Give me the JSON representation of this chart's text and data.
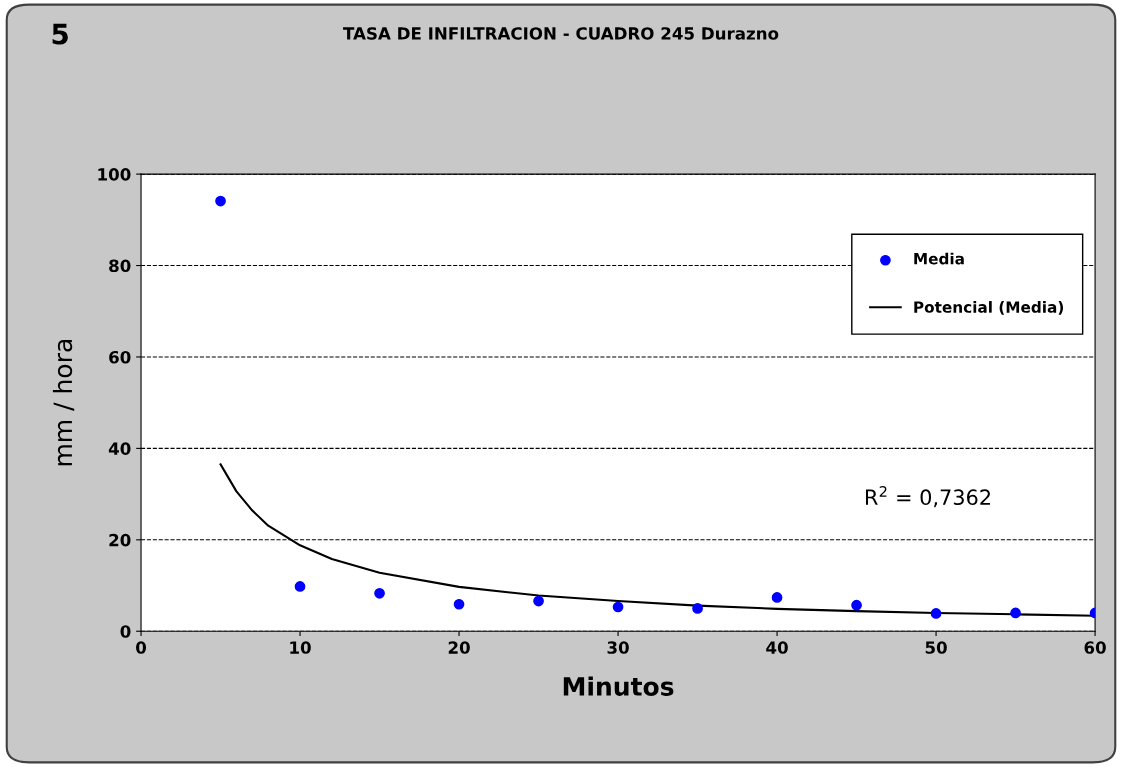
{
  "chart_data": {
    "type": "scatter",
    "title": "TASA DE INFILTRACION - CUADRO 245 Durazno",
    "xlabel": "Minutos",
    "ylabel": "mm / hora",
    "annotations": [
      "5",
      "R$^{2}$ = 0,7362"
    ],
    "series": [
      {
        "name": "Media",
        "color": "#0000ff",
        "marker": "circle",
        "x": [
          5,
          10,
          15,
          20,
          25,
          30,
          35,
          40,
          45,
          50,
          55,
          60
        ],
        "values": [
          94.1,
          9.8,
          8.3,
          5.9,
          6.6,
          5.3,
          5.0,
          7.4,
          5.7,
          3.9,
          4.0,
          4.0
        ]
      },
      {
        "name": "Potencial (Media)",
        "type": "line",
        "color": "#000000",
        "line_style": "solid",
        "x": [
          5,
          6,
          7,
          8,
          10,
          12,
          15,
          20,
          25,
          30,
          35,
          40,
          45,
          50,
          55,
          60
        ],
        "values": [
          36.5,
          30.6,
          26.4,
          23.1,
          18.8,
          15.8,
          12.8,
          9.7,
          7.8,
          6.6,
          5.6,
          4.9,
          4.4,
          4.0,
          3.7,
          3.4
        ]
      }
    ],
    "xlim": [
      0,
      60
    ],
    "xticks": [
      0,
      10,
      20,
      30,
      40,
      50,
      60
    ],
    "ylim": [
      0,
      100
    ],
    "yticks": [
      0,
      20,
      40,
      60,
      80,
      100
    ],
    "grid": "y",
    "legend": "top right"
  }
}
